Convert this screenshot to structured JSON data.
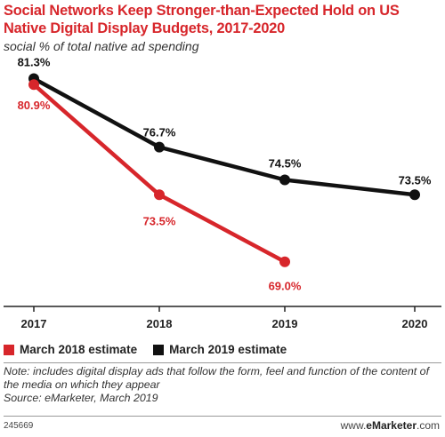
{
  "title": "Social Networks Keep Stronger-than-Expected Hold on US Native Digital Display Budgets, 2017-2020",
  "subtitle": "social % of total native ad spending",
  "colors": {
    "red": "#d7262b",
    "black": "#111111"
  },
  "chart_data": {
    "type": "line",
    "x": [
      "2017",
      "2018",
      "2019",
      "2020"
    ],
    "series": [
      {
        "name": "March 2018 estimate",
        "color": "#d7262b",
        "values": [
          80.9,
          73.5,
          69.0,
          null
        ],
        "labels": [
          "80.9%",
          "73.5%",
          "69.0%",
          ""
        ]
      },
      {
        "name": "March 2019 estimate",
        "color": "#111111",
        "values": [
          81.3,
          76.7,
          74.5,
          73.5
        ],
        "labels": [
          "81.3%",
          "76.7%",
          "74.5%",
          "73.5%"
        ]
      }
    ],
    "ylim": [
      66,
      83
    ],
    "grid": false,
    "legend": "bottom-left"
  },
  "note": "Note: includes digital display ads that follow the form, feel and function of the content of the media on which they appear",
  "source": "Source: eMarketer, March 2019",
  "footer": {
    "id": "245669",
    "brand_prefix": "www.",
    "brand_name": "eMarketer",
    "brand_suffix": ".com"
  }
}
